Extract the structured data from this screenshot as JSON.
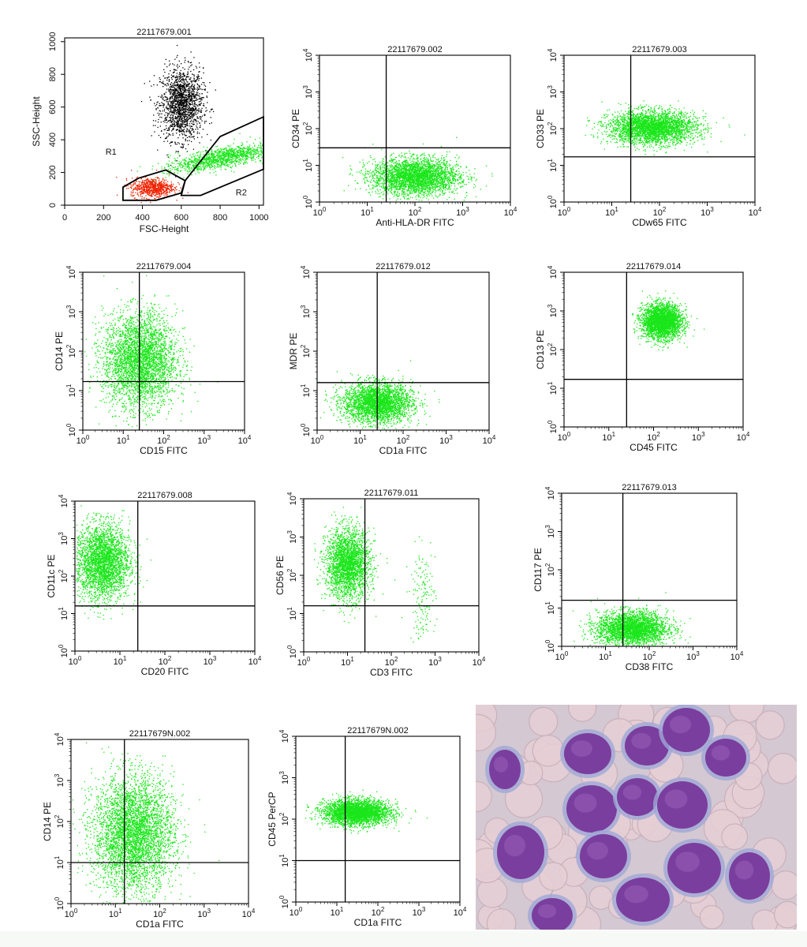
{
  "colors": {
    "dot_green": "#19e619",
    "dot_red": "#ee2200",
    "dot_black": "#000000",
    "axis": "#000000",
    "photo_bg": "#d4c8d2"
  },
  "photo": {
    "description_icon": "micrograph-photo"
  },
  "chart_data": [
    {
      "id": "p1",
      "type": "scatter",
      "title": "22117679.001",
      "xlabel": "FSC-Height",
      "ylabel": "SSC-Height",
      "xscale": "linear",
      "yscale": "linear",
      "xlim": [
        0,
        1023
      ],
      "ylim": [
        0,
        1023
      ],
      "xticks": [
        "0",
        "200",
        "400",
        "600",
        "800",
        "1000"
      ],
      "yticks": [
        "0",
        "200",
        "400",
        "600",
        "800",
        "1000"
      ],
      "regions": [
        {
          "name": "R1",
          "label_at": [
            210,
            310
          ]
        },
        {
          "name": "R2",
          "label_at": [
            880,
            60
          ]
        }
      ],
      "series": [
        {
          "color": "black",
          "count": 1600,
          "center": [
            600,
            620
          ],
          "spread": [
            55,
            110
          ]
        },
        {
          "color": "red",
          "count": 700,
          "center": [
            450,
            110
          ],
          "spread": [
            55,
            30
          ]
        },
        {
          "color": "green",
          "count": 1300,
          "center": [
            810,
            220
          ],
          "spread": [
            120,
            40
          ]
        }
      ],
      "gates": [
        {
          "name": "R1",
          "points": [
            [
              300,
              30
            ],
            [
              300,
              110
            ],
            [
              380,
              165
            ],
            [
              520,
              215
            ],
            [
              620,
              150
            ],
            [
              600,
              75
            ],
            [
              470,
              30
            ]
          ]
        },
        {
          "name": "R2",
          "points": [
            [
              600,
              60
            ],
            [
              620,
              150
            ],
            [
              800,
              420
            ],
            [
              1023,
              540
            ],
            [
              1023,
              220
            ],
            [
              700,
              60
            ]
          ]
        }
      ]
    },
    {
      "id": "p2",
      "type": "scatter",
      "title": "22117679.002",
      "xlabel": "Anti-HLA-DR FITC",
      "ylabel": "CD34 PE",
      "xscale": "log",
      "yscale": "log",
      "xlim": [
        1,
        10000
      ],
      "ylim": [
        1,
        10000
      ],
      "quadrant": [
        25,
        30
      ],
      "series": [
        {
          "color": "green",
          "count": 3200,
          "center": [
            100,
            5
          ],
          "spread": [
            0.45,
            0.25
          ]
        }
      ]
    },
    {
      "id": "p3",
      "type": "scatter",
      "title": "22117679.003",
      "xlabel": "CDw65 FITC",
      "ylabel": "CD33 PE",
      "xscale": "log",
      "yscale": "log",
      "xlim": [
        1,
        10000
      ],
      "ylim": [
        1,
        10000
      ],
      "quadrant": [
        25,
        17
      ],
      "series": [
        {
          "color": "green",
          "count": 3200,
          "center": [
            70,
            110
          ],
          "spread": [
            0.45,
            0.22
          ]
        }
      ]
    },
    {
      "id": "p4",
      "type": "scatter",
      "title": "22117679.004",
      "xlabel": "CD15 FITC",
      "ylabel": "CD14 PE",
      "xscale": "log",
      "yscale": "log",
      "xlim": [
        1,
        10000
      ],
      "ylim": [
        1,
        10000
      ],
      "quadrant": [
        25,
        17
      ],
      "series": [
        {
          "color": "green",
          "count": 3600,
          "center": [
            25,
            60
          ],
          "spread": [
            0.45,
            0.6
          ]
        }
      ]
    },
    {
      "id": "p5",
      "type": "scatter",
      "title": "22117679.012",
      "xlabel": "CD1a FITC",
      "ylabel": "MDR PE",
      "xscale": "log",
      "yscale": "log",
      "xlim": [
        1,
        10000
      ],
      "ylim": [
        1,
        10000
      ],
      "quadrant": [
        25,
        16
      ],
      "series": [
        {
          "color": "green",
          "count": 3000,
          "center": [
            25,
            5
          ],
          "spread": [
            0.4,
            0.25
          ]
        }
      ]
    },
    {
      "id": "p6",
      "type": "scatter",
      "title": "22117679.014",
      "xlabel": "CD45 FITC",
      "ylabel": "CD13 PE",
      "xscale": "log",
      "yscale": "log",
      "xlim": [
        1,
        10000
      ],
      "ylim": [
        1,
        10000
      ],
      "quadrant": [
        25,
        17
      ],
      "series": [
        {
          "color": "green",
          "count": 3000,
          "center": [
            150,
            550
          ],
          "spread": [
            0.22,
            0.22
          ]
        }
      ]
    },
    {
      "id": "p7",
      "type": "scatter",
      "title": "22117679.008",
      "xlabel": "CD20 FITC",
      "ylabel": "CD11c PE",
      "xscale": "log",
      "yscale": "log",
      "xlim": [
        1,
        10000
      ],
      "ylim": [
        1,
        10000
      ],
      "quadrant": [
        25,
        16
      ],
      "series": [
        {
          "color": "green",
          "count": 3000,
          "center": [
            4,
            250
          ],
          "spread": [
            0.3,
            0.5
          ]
        }
      ]
    },
    {
      "id": "p8",
      "type": "scatter",
      "title": "22117679.011",
      "xlabel": "CD3 FITC",
      "ylabel": "CD56 PE",
      "xscale": "log",
      "yscale": "log",
      "xlim": [
        1,
        10000
      ],
      "ylim": [
        1,
        10000
      ],
      "quadrant": [
        25,
        16
      ],
      "series": [
        {
          "color": "green",
          "count": 2600,
          "center": [
            10,
            200
          ],
          "spread": [
            0.25,
            0.45
          ]
        },
        {
          "color": "green",
          "count": 150,
          "center": [
            500,
            30
          ],
          "spread": [
            0.15,
            0.6
          ]
        }
      ]
    },
    {
      "id": "p9",
      "type": "scatter",
      "title": "22117679.013",
      "xlabel": "CD38 FITC",
      "ylabel": "CD117 PE",
      "xscale": "log",
      "yscale": "log",
      "xlim": [
        1,
        10000
      ],
      "ylim": [
        1,
        10000
      ],
      "quadrant": [
        25,
        16
      ],
      "series": [
        {
          "color": "green",
          "count": 3000,
          "center": [
            40,
            3
          ],
          "spread": [
            0.4,
            0.22
          ]
        }
      ]
    },
    {
      "id": "p10",
      "type": "scatter",
      "title": "22117679N.002",
      "xlabel": "CD1a FITC",
      "ylabel": "CD14 PE",
      "xscale": "log",
      "yscale": "log",
      "xlim": [
        1,
        10000
      ],
      "ylim": [
        1,
        10000
      ],
      "quadrant": [
        16,
        10
      ],
      "series": [
        {
          "color": "green",
          "count": 4200,
          "center": [
            25,
            50
          ],
          "spread": [
            0.45,
            0.7
          ]
        }
      ]
    },
    {
      "id": "p11",
      "type": "scatter",
      "title": "22117679N.002",
      "xlabel": "CD1a FITC",
      "ylabel": "CD45 PerCP",
      "xscale": "log",
      "yscale": "log",
      "xlim": [
        1,
        10000
      ],
      "ylim": [
        1,
        10000
      ],
      "quadrant": [
        16,
        10
      ],
      "series": [
        {
          "color": "green",
          "count": 3200,
          "center": [
            30,
            150
          ],
          "spread": [
            0.4,
            0.15
          ]
        }
      ]
    }
  ]
}
